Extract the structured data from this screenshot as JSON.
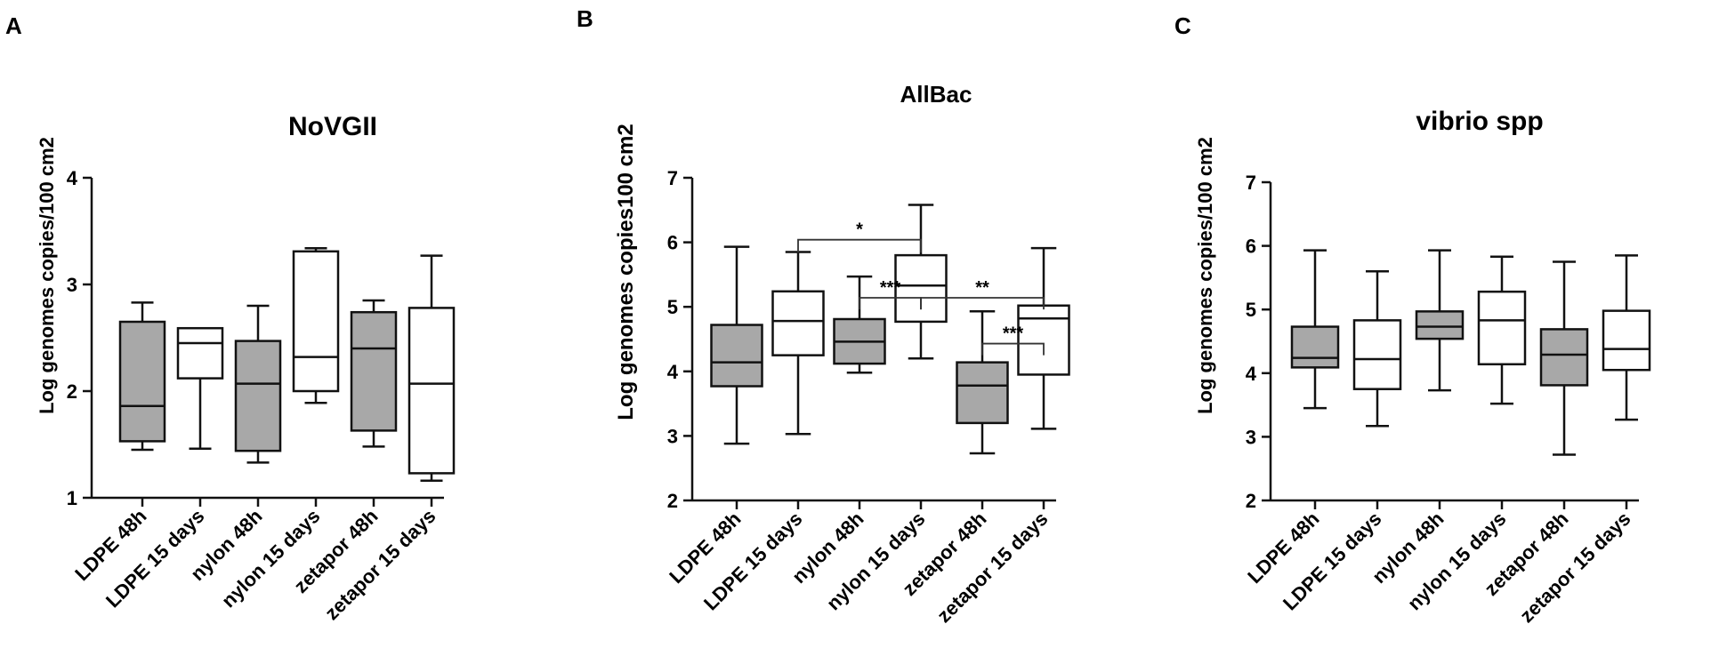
{
  "panels": [
    {
      "label": "A",
      "chart_data": {
        "type": "box",
        "title": "NoVGII",
        "ylabel": "Log genomes copies/100 cm2",
        "ylim": [
          1,
          4
        ],
        "yticks": [
          1,
          2,
          3,
          4
        ],
        "categories": [
          "LDPE 48h",
          "LDPE 15 days",
          "nylon 48h",
          "nylon 15 days",
          "zetapor 48h",
          "zetapor 15 days"
        ],
        "fills": [
          "gray",
          "white",
          "gray",
          "white",
          "gray",
          "white"
        ],
        "boxes": [
          {
            "min": 1.45,
            "q1": 1.53,
            "median": 1.86,
            "q3": 2.65,
            "max": 2.83
          },
          {
            "min": 1.46,
            "q1": 2.12,
            "median": 2.45,
            "q3": 2.59,
            "max": 2.59
          },
          {
            "min": 1.33,
            "q1": 1.44,
            "median": 2.07,
            "q3": 2.47,
            "max": 2.8
          },
          {
            "min": 1.89,
            "q1": 2.0,
            "median": 2.32,
            "q3": 3.31,
            "max": 3.34
          },
          {
            "min": 1.48,
            "q1": 1.63,
            "median": 2.4,
            "q3": 2.74,
            "max": 2.85
          },
          {
            "min": 1.16,
            "q1": 1.23,
            "median": 2.07,
            "q3": 2.78,
            "max": 3.27
          }
        ],
        "brackets": []
      }
    },
    {
      "label": "B",
      "chart_data": {
        "type": "box",
        "title": "AllBac",
        "ylabel": "Log genomes copies100 cm2",
        "ylim": [
          2,
          7
        ],
        "yticks": [
          2,
          3,
          4,
          5,
          6,
          7
        ],
        "categories": [
          "LDPE 48h",
          "LDPE 15 days",
          "nylon 48h",
          "nylon 15 days",
          "zetapor 48h",
          "zetapor 15 days"
        ],
        "fills": [
          "gray",
          "white",
          "gray",
          "white",
          "gray",
          "white"
        ],
        "boxes": [
          {
            "min": 2.88,
            "q1": 3.77,
            "median": 4.14,
            "q3": 4.72,
            "max": 5.93
          },
          {
            "min": 3.03,
            "q1": 4.25,
            "median": 4.78,
            "q3": 5.24,
            "max": 5.85
          },
          {
            "min": 3.98,
            "q1": 4.12,
            "median": 4.46,
            "q3": 4.81,
            "max": 5.47
          },
          {
            "min": 4.2,
            "q1": 4.77,
            "median": 5.33,
            "q3": 5.8,
            "max": 6.58
          },
          {
            "min": 2.73,
            "q1": 3.2,
            "median": 3.78,
            "q3": 4.14,
            "max": 4.93
          },
          {
            "min": 3.11,
            "q1": 3.95,
            "median": 4.82,
            "q3": 5.02,
            "max": 5.91
          }
        ],
        "brackets": [
          {
            "from": 1,
            "to": 3,
            "y": 6.04,
            "drop": 0.2,
            "label": "*"
          },
          {
            "from": 2,
            "to": 3,
            "y": 5.14,
            "drop": 0.18,
            "label": "***"
          },
          {
            "from": 3,
            "to": 5,
            "y": 5.14,
            "drop": 0.18,
            "label": "**"
          },
          {
            "from": 4,
            "to": 5,
            "y": 4.43,
            "drop": 0.18,
            "label": "***"
          }
        ]
      }
    },
    {
      "label": "C",
      "chart_data": {
        "type": "box",
        "title": "vibrio spp",
        "ylabel": "Log genomes copies/100 cm2",
        "ylim": [
          2,
          7
        ],
        "yticks": [
          2,
          3,
          4,
          5,
          6,
          7
        ],
        "categories": [
          "LDPE 48h",
          "LDPE 15 days",
          "nylon 48h",
          "nylon 15 days",
          "zetapor 48h",
          "zetapor 15 days"
        ],
        "fills": [
          "gray",
          "white",
          "gray",
          "white",
          "gray",
          "white"
        ],
        "boxes": [
          {
            "min": 3.45,
            "q1": 4.09,
            "median": 4.24,
            "q3": 4.73,
            "max": 5.93
          },
          {
            "min": 3.17,
            "q1": 3.75,
            "median": 4.22,
            "q3": 4.83,
            "max": 5.6
          },
          {
            "min": 3.73,
            "q1": 4.54,
            "median": 4.73,
            "q3": 4.97,
            "max": 5.93
          },
          {
            "min": 3.52,
            "q1": 4.14,
            "median": 4.83,
            "q3": 5.28,
            "max": 5.83
          },
          {
            "min": 2.72,
            "q1": 3.81,
            "median": 4.29,
            "q3": 4.69,
            "max": 5.75
          },
          {
            "min": 3.27,
            "q1": 4.05,
            "median": 4.38,
            "q3": 4.98,
            "max": 5.85
          }
        ],
        "brackets": []
      }
    }
  ],
  "colors": {
    "gray_fill": "#a8a8a8",
    "white_fill": "#ffffff",
    "stroke": "#111111"
  }
}
